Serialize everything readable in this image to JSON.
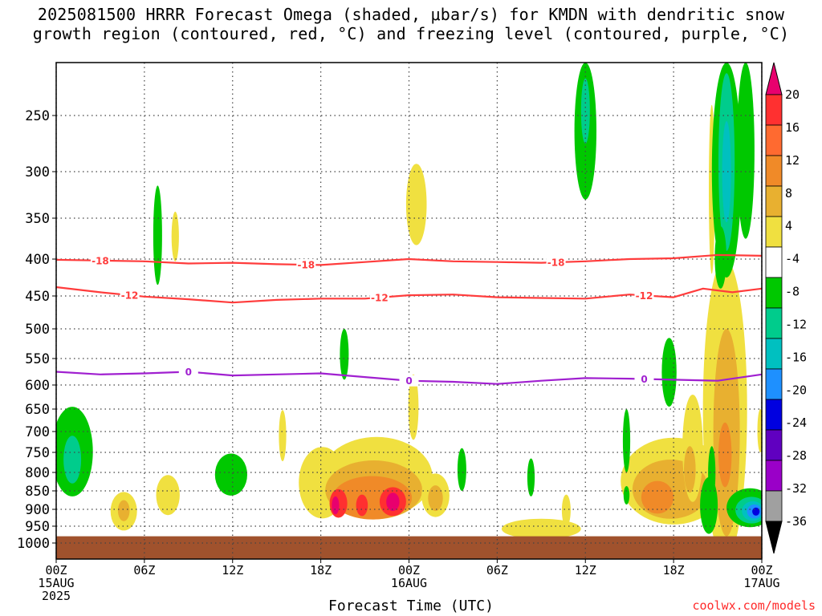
{
  "title": {
    "line1": "2025081500 HRRR Forecast Omega (shaded, μbar/s) for KMDN with dendritic snow",
    "line2": "growth region (contoured, red, °C) and freezing level (contoured, purple, °C)"
  },
  "credit": "coolwx.com/models",
  "chart_data": {
    "type": "area",
    "xlabel": "Forecast Time (UTC)",
    "ylabel": "",
    "x_hours": [
      0,
      48
    ],
    "x_ticks": [
      {
        "h": 0,
        "lines": [
          "00Z",
          "15AUG",
          "2025"
        ]
      },
      {
        "h": 6,
        "lines": [
          "06Z"
        ]
      },
      {
        "h": 12,
        "lines": [
          "12Z"
        ]
      },
      {
        "h": 18,
        "lines": [
          "18Z"
        ]
      },
      {
        "h": 24,
        "lines": [
          "00Z",
          "16AUG"
        ]
      },
      {
        "h": 30,
        "lines": [
          "06Z"
        ]
      },
      {
        "h": 36,
        "lines": [
          "12Z"
        ]
      },
      {
        "h": 42,
        "lines": [
          "18Z"
        ]
      },
      {
        "h": 48,
        "lines": [
          "00Z",
          "17AUG"
        ]
      }
    ],
    "y_ticks": [
      250,
      300,
      350,
      400,
      450,
      500,
      550,
      600,
      650,
      700,
      750,
      800,
      850,
      900,
      950,
      1000
    ],
    "y_range_hpa": [
      200,
      1020
    ],
    "colorbar": {
      "labels": [
        "20",
        "16",
        "12",
        "8",
        "4",
        "-4",
        "-8",
        "-12",
        "-16",
        "-20",
        "-24",
        "-28",
        "-32",
        "-36"
      ],
      "colors": [
        "#e8006e",
        "#ff3030",
        "#ff6a30",
        "#f08a28",
        "#e8b030",
        "#f0e040",
        "#ffffff",
        "#00c800",
        "#00cc8c",
        "#00c0c0",
        "#1e90ff",
        "#0000e0",
        "#6000c0",
        "#9a00c8",
        "#a0a0a0",
        "#000000"
      ]
    },
    "contours": [
      {
        "name": "-18",
        "color": "#ff3c3c",
        "label": "-18",
        "x": [
          0,
          3,
          6,
          9,
          12,
          15,
          18,
          21,
          24,
          27,
          30,
          33,
          36,
          39,
          42,
          45,
          48
        ],
        "y": [
          401,
          402,
          403,
          406,
          405,
          407,
          408,
          404,
          400,
          403,
          404,
          405,
          403,
          400,
          399,
          395,
          396
        ]
      },
      {
        "name": "-12",
        "color": "#ff3c3c",
        "label": "-12",
        "x": [
          0,
          3,
          6,
          9,
          12,
          15,
          18,
          21,
          24,
          27,
          30,
          33,
          36,
          39,
          42,
          44,
          46,
          48
        ],
        "y": [
          438,
          445,
          451,
          455,
          460,
          456,
          454,
          454,
          449,
          448,
          452,
          453,
          454,
          448,
          452,
          440,
          445,
          440
        ]
      },
      {
        "name": "0",
        "color": "#a020d0",
        "label": "0",
        "x": [
          0,
          3,
          6,
          9,
          12,
          15,
          18,
          21,
          24,
          27,
          30,
          33,
          36,
          39,
          42,
          45,
          48
        ],
        "y": [
          575,
          580,
          578,
          575,
          582,
          580,
          578,
          585,
          592,
          594,
          598,
          592,
          587,
          588,
          590,
          592,
          580
        ]
      }
    ],
    "omega_regions": [
      {
        "level": 4,
        "cx": 18.1,
        "cp": 832,
        "rx": 1.6,
        "rp": 95
      },
      {
        "level": 4,
        "cx": 21.8,
        "cp": 818,
        "rx": 3.8,
        "rp": 105
      },
      {
        "level": 8,
        "cx": 21.6,
        "cp": 850,
        "rx": 3.3,
        "rp": 80
      },
      {
        "level": 12,
        "cx": 21.5,
        "cp": 870,
        "rx": 2.7,
        "rp": 60
      },
      {
        "level": 16,
        "cx": 19.2,
        "cp": 885,
        "rx": 0.6,
        "rp": 40
      },
      {
        "level": 16,
        "cx": 22.9,
        "cp": 880,
        "rx": 0.9,
        "rp": 40
      },
      {
        "level": 20,
        "cx": 19.0,
        "cp": 890,
        "rx": 0.25,
        "rp": 25
      },
      {
        "level": 20,
        "cx": 22.9,
        "cp": 880,
        "rx": 0.45,
        "rp": 25
      },
      {
        "level": 16,
        "cx": 20.8,
        "cp": 890,
        "rx": 0.4,
        "rp": 30
      },
      {
        "level": 4,
        "cx": 4.6,
        "cp": 908,
        "rx": 0.9,
        "rp": 55
      },
      {
        "level": 8,
        "cx": 4.6,
        "cp": 905,
        "rx": 0.4,
        "rp": 30
      },
      {
        "level": 4,
        "cx": 7.6,
        "cp": 862,
        "rx": 0.8,
        "rp": 55
      },
      {
        "level": 4,
        "cx": 8.1,
        "cp": 373,
        "rx": 0.25,
        "rp": 30
      },
      {
        "level": 4,
        "cx": 15.4,
        "cp": 712,
        "rx": 0.25,
        "rp": 60
      },
      {
        "level": 4,
        "cx": 24.5,
        "cp": 338,
        "rx": 0.7,
        "rp": 45
      },
      {
        "level": 4,
        "cx": 24.3,
        "cp": 650,
        "rx": 0.35,
        "rp": 70
      },
      {
        "level": 4,
        "cx": 25.8,
        "cp": 863,
        "rx": 0.95,
        "rp": 60
      },
      {
        "level": 8,
        "cx": 25.8,
        "cp": 870,
        "rx": 0.5,
        "rp": 35
      },
      {
        "level": 4,
        "cx": 33.0,
        "cp": 958,
        "rx": 2.7,
        "rp": 30
      },
      {
        "level": 4,
        "cx": 34.7,
        "cp": 905,
        "rx": 0.3,
        "rp": 45
      },
      {
        "level": 4,
        "cx": 42.0,
        "cp": 830,
        "rx": 3.6,
        "rp": 115
      },
      {
        "level": 8,
        "cx": 41.8,
        "cp": 848,
        "rx": 2.6,
        "rp": 80
      },
      {
        "level": 12,
        "cx": 40.9,
        "cp": 868,
        "rx": 1.1,
        "rp": 45
      },
      {
        "level": 4,
        "cx": 43.3,
        "cp": 750,
        "rx": 0.7,
        "rp": 130
      },
      {
        "level": 8,
        "cx": 43.1,
        "cp": 795,
        "rx": 0.4,
        "rp": 60
      },
      {
        "level": 4,
        "cx": 45.5,
        "cp": 720,
        "rx": 1.5,
        "rp": 320
      },
      {
        "level": 8,
        "cx": 45.6,
        "cp": 740,
        "rx": 0.9,
        "rp": 240
      },
      {
        "level": 12,
        "cx": 45.5,
        "cp": 760,
        "rx": 0.45,
        "rp": 80
      },
      {
        "level": 4,
        "cx": 44.6,
        "cp": 330,
        "rx": 0.2,
        "rp": 90
      },
      {
        "level": 4,
        "cx": 47.9,
        "cp": 700,
        "rx": 0.2,
        "rp": 50
      }
    ],
    "omega_neg_regions": [
      {
        "level": -4,
        "cx": 1.1,
        "cp": 755,
        "rx": 1.4,
        "rp": 110
      },
      {
        "level": -8,
        "cx": 1.1,
        "cp": 770,
        "rx": 0.6,
        "rp": 60
      },
      {
        "level": -4,
        "cx": 6.9,
        "cp": 375,
        "rx": 0.3,
        "rp": 60
      },
      {
        "level": -4,
        "cx": 11.9,
        "cp": 808,
        "rx": 1.1,
        "rp": 55
      },
      {
        "level": -4,
        "cx": 19.6,
        "cp": 545,
        "rx": 0.3,
        "rp": 45
      },
      {
        "level": -4,
        "cx": 27.6,
        "cp": 795,
        "rx": 0.3,
        "rp": 55
      },
      {
        "level": -4,
        "cx": 32.3,
        "cp": 815,
        "rx": 0.25,
        "rp": 50
      },
      {
        "level": -4,
        "cx": 36.0,
        "cp": 255,
        "rx": 0.75,
        "rp": 75
      },
      {
        "level": -8,
        "cx": 36.0,
        "cp": 245,
        "rx": 0.3,
        "rp": 30
      },
      {
        "level": -4,
        "cx": 38.8,
        "cp": 725,
        "rx": 0.25,
        "rp": 75
      },
      {
        "level": -4,
        "cx": 38.8,
        "cp": 862,
        "rx": 0.2,
        "rp": 25
      },
      {
        "level": -4,
        "cx": 41.7,
        "cp": 580,
        "rx": 0.5,
        "rp": 65
      },
      {
        "level": -4,
        "cx": 44.4,
        "cp": 893,
        "rx": 0.6,
        "rp": 80
      },
      {
        "level": -4,
        "cx": 44.6,
        "cp": 805,
        "rx": 0.25,
        "rp": 70
      },
      {
        "level": -4,
        "cx": 45.6,
        "cp": 295,
        "rx": 1.0,
        "rp": 130
      },
      {
        "level": -8,
        "cx": 45.6,
        "cp": 300,
        "rx": 0.55,
        "rp": 90
      },
      {
        "level": -12,
        "cx": 45.6,
        "cp": 305,
        "rx": 0.3,
        "rp": 50
      },
      {
        "level": -4,
        "cx": 45.2,
        "cp": 400,
        "rx": 0.4,
        "rp": 40
      },
      {
        "level": -4,
        "cx": 46.9,
        "cp": 285,
        "rx": 0.6,
        "rp": 90
      },
      {
        "level": -4,
        "cx": 47.2,
        "cp": 898,
        "rx": 1.6,
        "rp": 55
      },
      {
        "level": -8,
        "cx": 47.3,
        "cp": 904,
        "rx": 1.1,
        "rp": 38
      },
      {
        "level": -12,
        "cx": 47.4,
        "cp": 906,
        "rx": 0.75,
        "rp": 28
      },
      {
        "level": -16,
        "cx": 47.5,
        "cp": 907,
        "rx": 0.5,
        "rp": 20
      },
      {
        "level": -20,
        "cx": 47.6,
        "cp": 907,
        "rx": 0.25,
        "rp": 12
      }
    ],
    "ground": {
      "color": "#a0522d",
      "from_hpa": 980
    }
  }
}
